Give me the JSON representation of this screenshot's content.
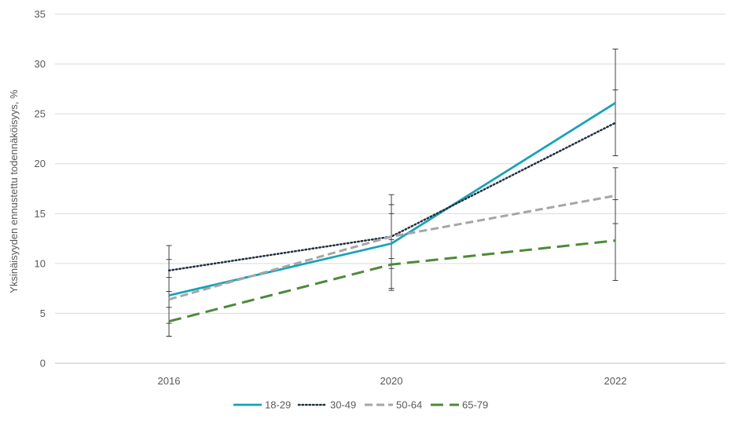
{
  "chart_data": {
    "type": "line",
    "title": "",
    "xlabel": "",
    "ylabel": "Yksinäisyyden ennustettu todennäköisyys, %",
    "categories": [
      "2016",
      "2020",
      "2022"
    ],
    "ylim": [
      0,
      35
    ],
    "yticks": [
      0,
      5,
      10,
      15,
      20,
      25,
      30,
      35
    ],
    "grid": true,
    "legend_position": "bottom",
    "series": [
      {
        "name": "18-29",
        "values": [
          6.8,
          12.0,
          26.1
        ],
        "error_low": [
          2.7,
          7.3,
          20.8
        ],
        "error_high": [
          10.4,
          16.9,
          31.5
        ],
        "color": "#17a2b8",
        "style": "solid"
      },
      {
        "name": "30-49",
        "values": [
          9.3,
          12.7,
          24.1
        ],
        "error_low": [
          7.2,
          10.5,
          20.8
        ],
        "error_high": [
          11.8,
          15.0,
          27.4
        ],
        "color": "#1f2f3f",
        "style": "dotted"
      },
      {
        "name": "50-64",
        "values": [
          6.4,
          12.7,
          16.8
        ],
        "error_low": [
          4.0,
          9.5,
          14.0
        ],
        "error_high": [
          8.6,
          15.9,
          19.6
        ],
        "color": "#a6a6a6",
        "style": "dashed"
      },
      {
        "name": "65-79",
        "values": [
          4.2,
          9.9,
          12.3
        ],
        "error_low": [
          2.7,
          7.5,
          8.3
        ],
        "error_high": [
          5.6,
          12.4,
          16.4
        ],
        "color": "#4d8a3a",
        "style": "longdash"
      }
    ]
  }
}
